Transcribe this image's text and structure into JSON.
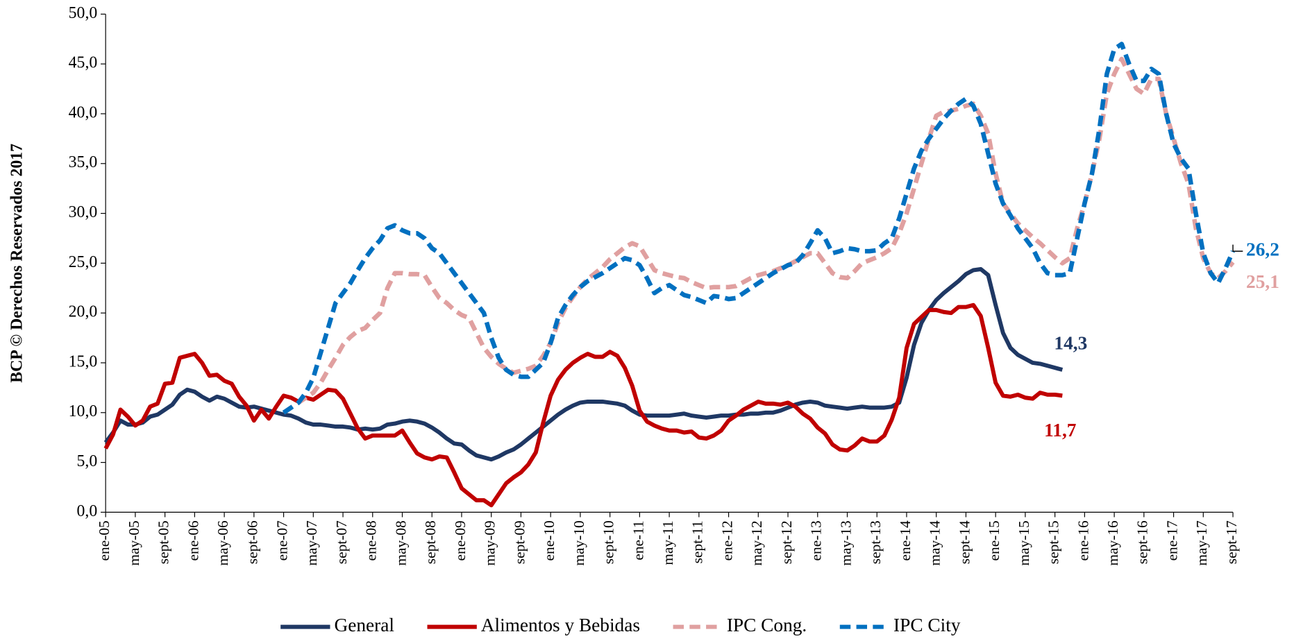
{
  "chart_data": {
    "type": "line",
    "y_axis_label": "BCP © Derechos Reservados 2017",
    "categories": [
      "ene-05",
      null,
      null,
      null,
      "may-05",
      null,
      null,
      null,
      "sept-05",
      null,
      null,
      null,
      "ene-06",
      null,
      null,
      null,
      "may-06",
      null,
      null,
      null,
      "sept-06",
      null,
      null,
      null,
      "ene-07",
      null,
      null,
      null,
      "may-07",
      null,
      null,
      null,
      "sept-07",
      null,
      null,
      null,
      "ene-08",
      null,
      null,
      null,
      "may-08",
      null,
      null,
      null,
      "sept-08",
      null,
      null,
      null,
      "ene-09",
      null,
      null,
      null,
      "may-09",
      null,
      null,
      null,
      "sept-09",
      null,
      null,
      null,
      "ene-10",
      null,
      null,
      null,
      "may-10",
      null,
      null,
      null,
      "sept-10",
      null,
      null,
      null,
      "ene-11",
      null,
      null,
      null,
      "may-11",
      null,
      null,
      null,
      "sept-11",
      null,
      null,
      null,
      "ene-12",
      null,
      null,
      null,
      "may-12",
      null,
      null,
      null,
      "sept-12",
      null,
      null,
      null,
      "ene-13",
      null,
      null,
      null,
      "may-13",
      null,
      null,
      null,
      "sept-13",
      null,
      null,
      null,
      "ene-14",
      null,
      null,
      null,
      "may-14",
      null,
      null,
      null,
      "sept-14",
      null,
      null,
      null,
      "ene-15",
      null,
      null,
      null,
      "may-15",
      null,
      null,
      null,
      "sept-15",
      null,
      null,
      null,
      "ene-16",
      null,
      null,
      null,
      "may-16",
      null,
      null,
      null,
      "sept-16",
      null,
      null,
      null,
      "ene-17",
      null,
      null,
      null,
      "may-17",
      null,
      null,
      null,
      "sept-17"
    ],
    "series": [
      {
        "name": "General",
        "color": "#1f3864",
        "dashed": false,
        "last_label": "14,3",
        "values": [
          7.0,
          8.0,
          9.2,
          8.8,
          8.8,
          9.0,
          9.6,
          9.8,
          10.3,
          10.8,
          11.8,
          12.3,
          12.1,
          11.6,
          11.2,
          11.6,
          11.4,
          11.0,
          10.6,
          10.5,
          10.6,
          10.4,
          10.2,
          10.0,
          9.8,
          9.7,
          9.4,
          9.0,
          8.8,
          8.8,
          8.7,
          8.6,
          8.6,
          8.5,
          8.3,
          8.4,
          8.3,
          8.4,
          8.8,
          8.9,
          9.1,
          9.2,
          9.1,
          8.9,
          8.5,
          8.0,
          7.4,
          6.9,
          6.8,
          6.2,
          5.7,
          5.5,
          5.3,
          5.6,
          6.0,
          6.3,
          6.8,
          7.4,
          8.0,
          8.6,
          9.2,
          9.8,
          10.3,
          10.7,
          11.0,
          11.1,
          11.1,
          11.1,
          11.0,
          10.9,
          10.7,
          10.2,
          9.8,
          9.7,
          9.7,
          9.7,
          9.7,
          9.8,
          9.9,
          9.7,
          9.6,
          9.5,
          9.6,
          9.7,
          9.7,
          9.8,
          9.8,
          9.9,
          9.9,
          10.0,
          10.0,
          10.2,
          10.5,
          10.8,
          11.0,
          11.1,
          11.0,
          10.7,
          10.6,
          10.5,
          10.4,
          10.5,
          10.6,
          10.5,
          10.5,
          10.5,
          10.6,
          11.0,
          13.5,
          16.8,
          19.0,
          20.3,
          21.3,
          22.0,
          22.6,
          23.2,
          23.9,
          24.3,
          24.4,
          23.8,
          20.8,
          18.0,
          16.5,
          15.8,
          15.4,
          15.0,
          14.9,
          14.7,
          14.5,
          14.3,
          null,
          null,
          null,
          null,
          null,
          null,
          null,
          null,
          null,
          null,
          null,
          null,
          null,
          null,
          null,
          null,
          null,
          null,
          null,
          null,
          null,
          null,
          null
        ]
      },
      {
        "name": "Alimentos y Bebidas",
        "color": "#c00000",
        "dashed": false,
        "last_label": "11,7",
        "values": [
          6.4,
          7.8,
          10.3,
          9.6,
          8.7,
          9.2,
          10.6,
          10.9,
          12.9,
          13.0,
          15.5,
          15.7,
          15.9,
          15.0,
          13.7,
          13.8,
          13.2,
          12.9,
          11.6,
          10.7,
          9.2,
          10.3,
          9.4,
          10.6,
          11.7,
          11.5,
          11.1,
          11.5,
          11.3,
          11.8,
          12.3,
          12.2,
          11.4,
          9.9,
          8.4,
          7.4,
          7.7,
          7.7,
          7.7,
          7.7,
          8.2,
          7.0,
          5.9,
          5.5,
          5.3,
          5.6,
          5.5,
          4.0,
          2.4,
          1.8,
          1.2,
          1.2,
          0.7,
          1.8,
          2.9,
          3.5,
          4.0,
          4.8,
          6.0,
          9.0,
          11.7,
          13.3,
          14.3,
          15.0,
          15.5,
          15.9,
          15.6,
          15.6,
          16.1,
          15.7,
          14.5,
          12.7,
          10.2,
          9.1,
          8.7,
          8.4,
          8.2,
          8.2,
          8.0,
          8.1,
          7.5,
          7.4,
          7.7,
          8.2,
          9.2,
          9.7,
          10.3,
          10.7,
          11.1,
          10.9,
          10.9,
          10.8,
          11.0,
          10.6,
          9.9,
          9.4,
          8.5,
          7.9,
          6.8,
          6.3,
          6.2,
          6.7,
          7.4,
          7.1,
          7.1,
          7.7,
          9.3,
          11.5,
          16.5,
          18.9,
          19.6,
          20.3,
          20.3,
          20.1,
          20.0,
          20.6,
          20.6,
          20.8,
          19.7,
          16.5,
          13.0,
          11.7,
          11.6,
          11.8,
          11.5,
          11.4,
          12.0,
          11.8,
          11.8,
          11.7,
          null,
          null,
          null,
          null,
          null,
          null,
          null,
          null,
          null,
          null,
          null,
          null,
          null,
          null,
          null,
          null,
          null,
          null,
          null,
          null,
          null,
          null,
          null
        ]
      },
      {
        "name": "IPC Cong.",
        "color": "#e0a0a0",
        "dashed": true,
        "last_label": "25,1",
        "values": [
          null,
          null,
          null,
          null,
          null,
          null,
          null,
          null,
          null,
          null,
          null,
          null,
          null,
          null,
          null,
          null,
          null,
          null,
          null,
          null,
          null,
          null,
          null,
          null,
          10.0,
          10.5,
          11.0,
          11.5,
          12.0,
          13.0,
          14.3,
          15.5,
          16.8,
          17.6,
          18.2,
          18.5,
          19.3,
          20.0,
          22.5,
          24.0,
          24.0,
          23.9,
          23.9,
          23.8,
          22.6,
          21.5,
          21.0,
          20.3,
          19.8,
          19.5,
          18.0,
          16.5,
          15.6,
          14.9,
          14.4,
          14.0,
          14.2,
          14.4,
          14.7,
          15.7,
          17.0,
          19.0,
          20.5,
          21.6,
          22.6,
          23.4,
          24.0,
          24.6,
          25.4,
          26.0,
          26.6,
          27.0,
          26.7,
          25.5,
          24.3,
          24.0,
          23.8,
          23.6,
          23.5,
          23.1,
          22.8,
          22.5,
          22.6,
          22.6,
          22.6,
          22.7,
          23.1,
          23.5,
          23.8,
          24.0,
          24.2,
          24.5,
          24.8,
          25.2,
          25.6,
          26.0,
          26.0,
          25.0,
          24.0,
          23.6,
          23.5,
          24.2,
          25.0,
          25.3,
          25.6,
          26.0,
          26.5,
          28.0,
          30.0,
          32.5,
          35.0,
          37.5,
          39.8,
          40.2,
          40.3,
          40.5,
          40.8,
          41.0,
          39.8,
          38.0,
          34.0,
          31.0,
          30.0,
          29.0,
          28.3,
          27.6,
          27.0,
          26.3,
          25.6,
          25.0,
          25.5,
          28.5,
          31.0,
          34.0,
          37.5,
          42.0,
          44.0,
          45.5,
          44.0,
          42.5,
          42.0,
          43.5,
          43.5,
          40.0,
          37.5,
          35.0,
          33.0,
          28.5,
          25.5,
          24.0,
          23.5,
          24.2,
          25.1
        ]
      },
      {
        "name": "IPC City",
        "color": "#0070c0",
        "dashed": true,
        "last_label": "26,2",
        "values": [
          null,
          null,
          null,
          null,
          null,
          null,
          null,
          null,
          null,
          null,
          null,
          null,
          null,
          null,
          null,
          null,
          null,
          null,
          null,
          null,
          null,
          null,
          null,
          null,
          10.0,
          10.5,
          11.0,
          12.0,
          13.5,
          16.0,
          18.5,
          21.0,
          22.0,
          23.0,
          24.3,
          25.5,
          26.5,
          27.3,
          28.5,
          28.8,
          28.3,
          28.0,
          28.0,
          27.5,
          26.5,
          26.0,
          25.0,
          24.0,
          23.0,
          22.0,
          21.0,
          20.0,
          17.5,
          15.5,
          14.3,
          13.8,
          13.6,
          13.6,
          14.3,
          15.0,
          17.0,
          19.5,
          20.8,
          21.8,
          22.6,
          23.2,
          23.6,
          24.0,
          24.5,
          25.0,
          25.5,
          25.3,
          24.8,
          23.5,
          22.0,
          22.5,
          22.8,
          22.3,
          21.8,
          21.6,
          21.3,
          21.0,
          21.7,
          21.6,
          21.4,
          21.5,
          22.0,
          22.5,
          23.0,
          23.5,
          24.0,
          24.4,
          24.8,
          25.0,
          25.8,
          27.0,
          28.3,
          27.5,
          26.0,
          26.2,
          26.5,
          26.4,
          26.2,
          26.2,
          26.3,
          27.0,
          27.5,
          29.5,
          32.0,
          34.5,
          36.3,
          37.5,
          38.5,
          39.5,
          40.3,
          41.0,
          41.5,
          40.8,
          39.0,
          36.0,
          33.0,
          31.0,
          29.8,
          28.5,
          27.5,
          26.5,
          25.0,
          24.0,
          23.8,
          23.8,
          24.0,
          27.5,
          31.0,
          34.0,
          38.5,
          44.0,
          46.5,
          47.0,
          45.0,
          43.3,
          43.3,
          44.5,
          44.0,
          40.0,
          37.0,
          35.5,
          34.5,
          30.0,
          26.0,
          24.0,
          23.0,
          24.5,
          26.2
        ]
      }
    ],
    "ylim": [
      0,
      50
    ],
    "yticks": [
      {
        "value": 0,
        "label": "0,0"
      },
      {
        "value": 5,
        "label": "5,0"
      },
      {
        "value": 10,
        "label": "10,0"
      },
      {
        "value": 15,
        "label": "15,0"
      },
      {
        "value": 20,
        "label": "20,0"
      },
      {
        "value": 25,
        "label": "25,0"
      },
      {
        "value": 30,
        "label": "30,0"
      },
      {
        "value": 35,
        "label": "35,0"
      },
      {
        "value": 40,
        "label": "40,0"
      },
      {
        "value": 45,
        "label": "45,0"
      },
      {
        "value": 50,
        "label": "50,0"
      }
    ],
    "grid": false,
    "legend": "bottom"
  }
}
